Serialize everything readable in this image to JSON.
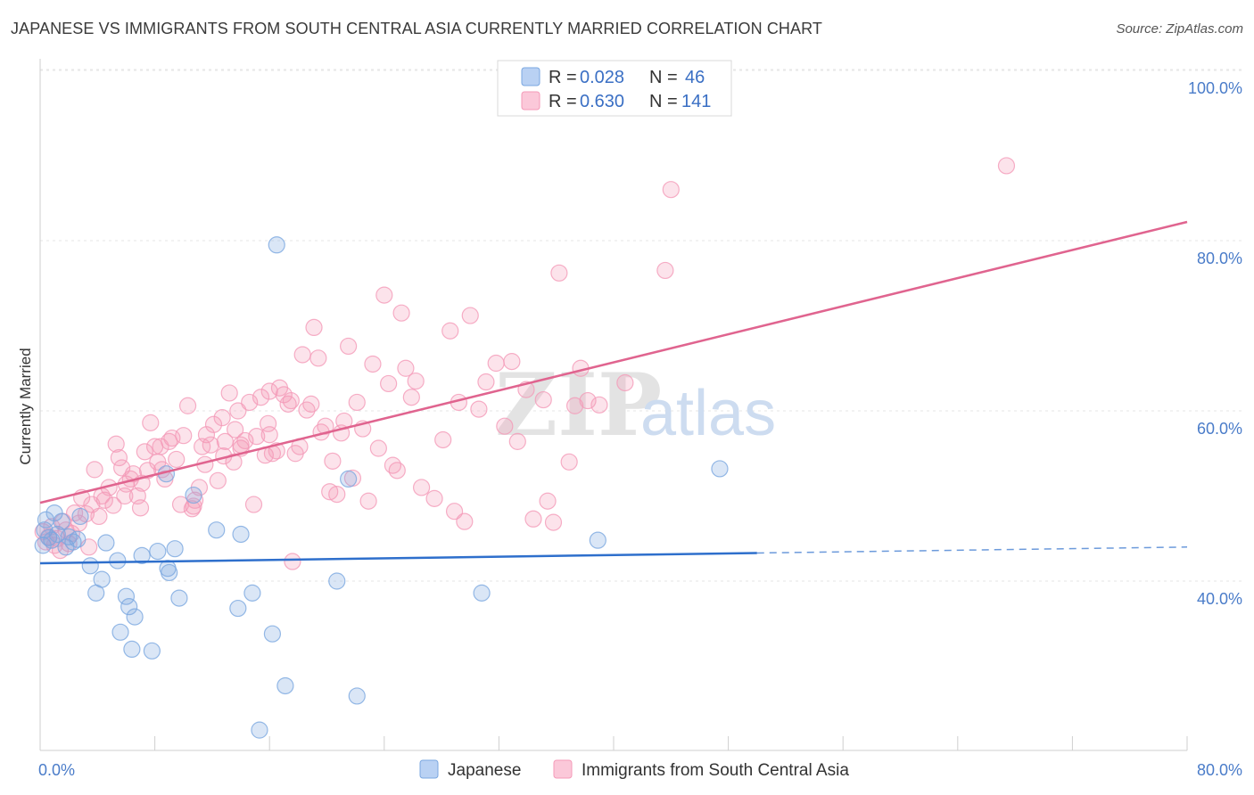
{
  "header": {
    "title": "JAPANESE VS IMMIGRANTS FROM SOUTH CENTRAL ASIA CURRENTLY MARRIED CORRELATION CHART",
    "source": "Source: ZipAtlas.com"
  },
  "watermark": {
    "zip": "ZIP",
    "atlas": "atlas"
  },
  "chart_data": {
    "type": "scatter",
    "title": "JAPANESE VS IMMIGRANTS FROM SOUTH CENTRAL ASIA CURRENTLY MARRIED CORRELATION CHART",
    "xlabel": "",
    "ylabel": "Currently Married",
    "xlim": [
      0,
      80
    ],
    "ylim": [
      20,
      103
    ],
    "x_tick_labels": [
      "0.0%",
      "80.0%"
    ],
    "y_ticks": [
      40,
      60,
      80,
      100
    ],
    "y_tick_labels": [
      "40.0%",
      "60.0%",
      "80.0%",
      "100.0%"
    ],
    "grid": true,
    "legend_position": "top-center",
    "legend": [
      {
        "r_label": "R =",
        "r_value": "0.028",
        "n_label": "N =",
        "n_value": "46"
      },
      {
        "r_label": "R =",
        "r_value": "0.630",
        "n_label": "N =",
        "n_value": "141"
      }
    ],
    "series": [
      {
        "name": "Japanese",
        "color": "#7aa7e0",
        "line_color": "#2e6fcc",
        "trend": {
          "x": [
            0,
            50
          ],
          "y": [
            42.1,
            43.3
          ],
          "dashed_to": [
            80,
            44.0
          ]
        },
        "points": [
          [
            0.2,
            44.2
          ],
          [
            0.3,
            46.0
          ],
          [
            0.4,
            47.2
          ],
          [
            0.6,
            45.1
          ],
          [
            0.8,
            44.8
          ],
          [
            1.0,
            48.0
          ],
          [
            1.2,
            45.5
          ],
          [
            1.5,
            47.0
          ],
          [
            1.8,
            44.0
          ],
          [
            2.0,
            45.2
          ],
          [
            2.3,
            44.6
          ],
          [
            2.6,
            44.9
          ],
          [
            2.8,
            47.6
          ],
          [
            3.5,
            41.8
          ],
          [
            3.9,
            38.6
          ],
          [
            4.3,
            40.2
          ],
          [
            4.6,
            44.5
          ],
          [
            5.4,
            42.4
          ],
          [
            5.6,
            34.0
          ],
          [
            6.0,
            38.2
          ],
          [
            6.2,
            37.0
          ],
          [
            6.6,
            35.8
          ],
          [
            6.4,
            32.0
          ],
          [
            7.1,
            43.0
          ],
          [
            7.8,
            31.8
          ],
          [
            8.2,
            43.5
          ],
          [
            8.9,
            41.5
          ],
          [
            9.0,
            41.0
          ],
          [
            9.4,
            43.8
          ],
          [
            9.7,
            38.0
          ],
          [
            10.7,
            50.1
          ],
          [
            12.3,
            46.0
          ],
          [
            13.8,
            36.8
          ],
          [
            14.0,
            45.5
          ],
          [
            14.8,
            38.6
          ],
          [
            15.3,
            22.5
          ],
          [
            16.2,
            33.8
          ],
          [
            16.5,
            79.5
          ],
          [
            17.1,
            27.7
          ],
          [
            20.7,
            40.0
          ],
          [
            21.5,
            52.0
          ],
          [
            22.1,
            26.5
          ],
          [
            30.8,
            38.6
          ],
          [
            38.9,
            44.8
          ],
          [
            47.4,
            53.2
          ],
          [
            8.8,
            52.6
          ]
        ]
      },
      {
        "name": "Immigrants from South Central Asia",
        "color": "#f49ab8",
        "line_color": "#e0648f",
        "trend": {
          "x": [
            0,
            80
          ],
          "y": [
            49.2,
            82.2
          ]
        },
        "points": [
          [
            0.2,
            45.8
          ],
          [
            0.4,
            44.6
          ],
          [
            0.6,
            45.2
          ],
          [
            0.8,
            46.4
          ],
          [
            1.0,
            44.2
          ],
          [
            1.2,
            45.0
          ],
          [
            1.4,
            43.6
          ],
          [
            1.6,
            47.0
          ],
          [
            1.8,
            46.0
          ],
          [
            2.0,
            44.4
          ],
          [
            2.2,
            45.6
          ],
          [
            2.4,
            48.0
          ],
          [
            2.7,
            46.8
          ],
          [
            2.9,
            49.8
          ],
          [
            3.2,
            47.9
          ],
          [
            3.4,
            44.0
          ],
          [
            3.6,
            49.0
          ],
          [
            3.8,
            53.1
          ],
          [
            4.1,
            47.6
          ],
          [
            4.3,
            50.0
          ],
          [
            4.5,
            49.5
          ],
          [
            4.8,
            51.0
          ],
          [
            5.1,
            48.9
          ],
          [
            5.3,
            56.1
          ],
          [
            5.5,
            54.5
          ],
          [
            5.7,
            53.3
          ],
          [
            6.0,
            51.4
          ],
          [
            6.3,
            52.0
          ],
          [
            6.5,
            52.6
          ],
          [
            6.8,
            50.0
          ],
          [
            7.1,
            51.5
          ],
          [
            7.3,
            55.2
          ],
          [
            7.5,
            53.0
          ],
          [
            7.7,
            58.6
          ],
          [
            8.0,
            55.8
          ],
          [
            8.2,
            54.0
          ],
          [
            8.5,
            53.1
          ],
          [
            8.7,
            52.0
          ],
          [
            9.0,
            56.4
          ],
          [
            9.2,
            56.8
          ],
          [
            9.5,
            54.3
          ],
          [
            9.8,
            49.0
          ],
          [
            10.0,
            57.1
          ],
          [
            10.3,
            60.6
          ],
          [
            10.6,
            48.5
          ],
          [
            10.8,
            49.5
          ],
          [
            11.1,
            51.0
          ],
          [
            11.3,
            55.8
          ],
          [
            11.6,
            57.2
          ],
          [
            11.9,
            56.0
          ],
          [
            12.1,
            58.4
          ],
          [
            12.4,
            51.8
          ],
          [
            12.7,
            59.2
          ],
          [
            12.9,
            56.4
          ],
          [
            13.2,
            62.1
          ],
          [
            13.5,
            54.0
          ],
          [
            13.8,
            60.0
          ],
          [
            14.0,
            55.6
          ],
          [
            14.3,
            56.5
          ],
          [
            14.6,
            61.0
          ],
          [
            14.9,
            49.0
          ],
          [
            15.1,
            57.0
          ],
          [
            15.4,
            61.6
          ],
          [
            15.7,
            54.8
          ],
          [
            16.0,
            57.2
          ],
          [
            16.2,
            55.0
          ],
          [
            16.5,
            55.3
          ],
          [
            16.7,
            62.7
          ],
          [
            17.0,
            61.9
          ],
          [
            17.3,
            60.8
          ],
          [
            17.5,
            61.2
          ],
          [
            17.8,
            55.0
          ],
          [
            18.1,
            55.8
          ],
          [
            18.3,
            66.6
          ],
          [
            18.6,
            60.1
          ],
          [
            18.9,
            60.8
          ],
          [
            19.1,
            69.8
          ],
          [
            19.4,
            66.2
          ],
          [
            19.6,
            57.5
          ],
          [
            19.9,
            58.2
          ],
          [
            20.2,
            50.5
          ],
          [
            20.4,
            54.1
          ],
          [
            20.7,
            50.2
          ],
          [
            21.0,
            57.4
          ],
          [
            21.2,
            58.8
          ],
          [
            21.5,
            67.6
          ],
          [
            21.8,
            52.1
          ],
          [
            22.1,
            61.0
          ],
          [
            22.5,
            57.9
          ],
          [
            22.9,
            49.4
          ],
          [
            23.2,
            65.5
          ],
          [
            23.6,
            55.6
          ],
          [
            24.0,
            73.6
          ],
          [
            24.3,
            63.2
          ],
          [
            24.6,
            53.6
          ],
          [
            24.9,
            53.0
          ],
          [
            25.2,
            71.5
          ],
          [
            25.5,
            65.0
          ],
          [
            25.9,
            61.6
          ],
          [
            26.2,
            63.5
          ],
          [
            26.6,
            51.0
          ],
          [
            27.5,
            49.7
          ],
          [
            28.1,
            56.6
          ],
          [
            28.6,
            69.4
          ],
          [
            28.9,
            48.2
          ],
          [
            29.2,
            61.0
          ],
          [
            29.6,
            47.0
          ],
          [
            30.0,
            71.2
          ],
          [
            30.6,
            60.2
          ],
          [
            31.1,
            63.4
          ],
          [
            31.8,
            65.6
          ],
          [
            32.4,
            58.2
          ],
          [
            32.9,
            65.8
          ],
          [
            33.3,
            56.4
          ],
          [
            33.9,
            62.5
          ],
          [
            34.4,
            47.3
          ],
          [
            35.1,
            61.3
          ],
          [
            35.4,
            49.4
          ],
          [
            35.8,
            46.9
          ],
          [
            36.2,
            76.2
          ],
          [
            36.9,
            54.0
          ],
          [
            37.3,
            60.6
          ],
          [
            37.7,
            65.0
          ],
          [
            38.2,
            61.2
          ],
          [
            39.0,
            60.7
          ],
          [
            40.8,
            63.3
          ],
          [
            43.6,
            76.5
          ],
          [
            44.0,
            86.0
          ],
          [
            67.4,
            88.8
          ],
          [
            17.6,
            42.3
          ],
          [
            10.7,
            48.8
          ],
          [
            12.8,
            54.7
          ],
          [
            14.0,
            56.0
          ],
          [
            16.0,
            62.3
          ],
          [
            15.9,
            58.5
          ],
          [
            11.5,
            53.7
          ],
          [
            8.4,
            55.8
          ],
          [
            13.6,
            57.8
          ],
          [
            5.9,
            50.0
          ],
          [
            7.0,
            48.6
          ]
        ]
      }
    ]
  },
  "bottom_legend": {
    "items": [
      {
        "label": "Japanese",
        "color": "#7aa7e0"
      },
      {
        "label": "Immigrants from South Central Asia",
        "color": "#f49ab8"
      }
    ]
  }
}
